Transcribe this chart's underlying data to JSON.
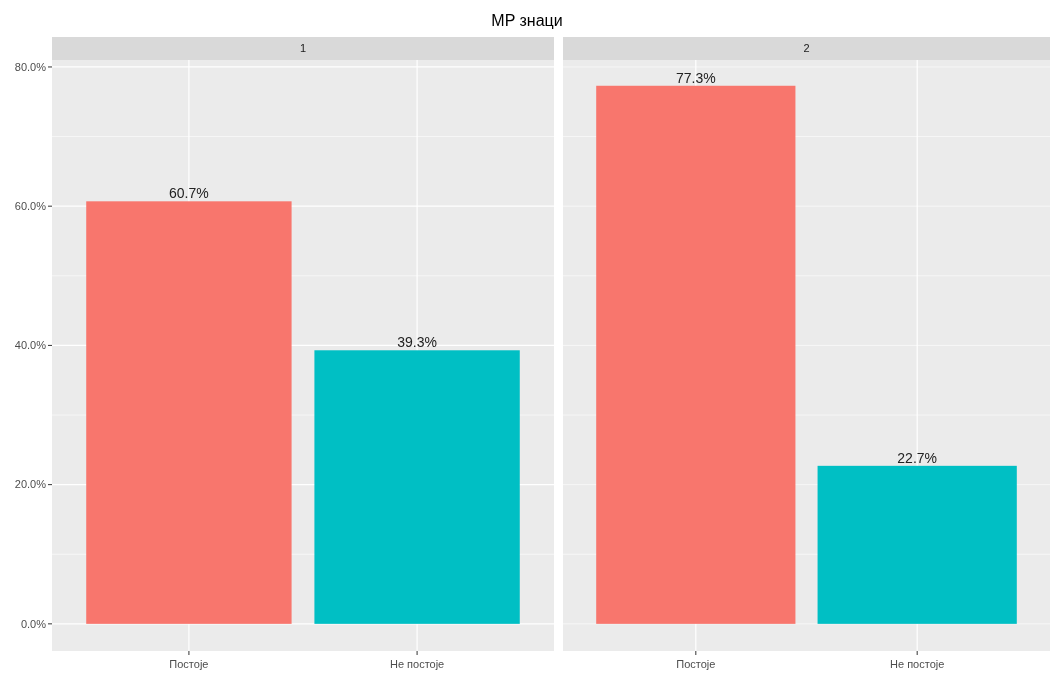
{
  "chart_data": [
    {
      "type": "bar",
      "title": "MP знаци",
      "subtitle": "1",
      "categories": [
        "Постоје",
        "Не постоје"
      ],
      "values": [
        60.7,
        39.3
      ],
      "colors": [
        "#f8766d",
        "#00bfc4"
      ],
      "value_labels": [
        "60.7%",
        "39.3%"
      ],
      "ylim": [
        -3.9,
        81.0
      ],
      "yticks": [
        {
          "value": 0,
          "label": "0.0%"
        },
        {
          "value": 10,
          "label": null
        },
        {
          "value": 20,
          "label": "20.0%"
        },
        {
          "value": 30,
          "label": null
        },
        {
          "value": 40,
          "label": "40.0%"
        },
        {
          "value": 50,
          "label": null
        },
        {
          "value": 60,
          "label": "60.0%"
        },
        {
          "value": 70,
          "label": null
        },
        {
          "value": 80,
          "label": "80.0%"
        }
      ],
      "grid": true
    },
    {
      "type": "bar",
      "subtitle": "2",
      "categories": [
        "Постоје",
        "Не постоје"
      ],
      "values": [
        77.3,
        22.7
      ],
      "colors": [
        "#f8766d",
        "#00bfc4"
      ],
      "value_labels": [
        "77.3%",
        "22.7%"
      ],
      "ylim": [
        -3.9,
        81.0
      ],
      "yticks": [
        {
          "value": 0,
          "label": null
        },
        {
          "value": 10,
          "label": null
        },
        {
          "value": 20,
          "label": null
        },
        {
          "value": 30,
          "label": null
        },
        {
          "value": 40,
          "label": null
        },
        {
          "value": 50,
          "label": null
        },
        {
          "value": 60,
          "label": null
        },
        {
          "value": 70,
          "label": null
        },
        {
          "value": 80,
          "label": null
        }
      ],
      "grid": true
    }
  ]
}
